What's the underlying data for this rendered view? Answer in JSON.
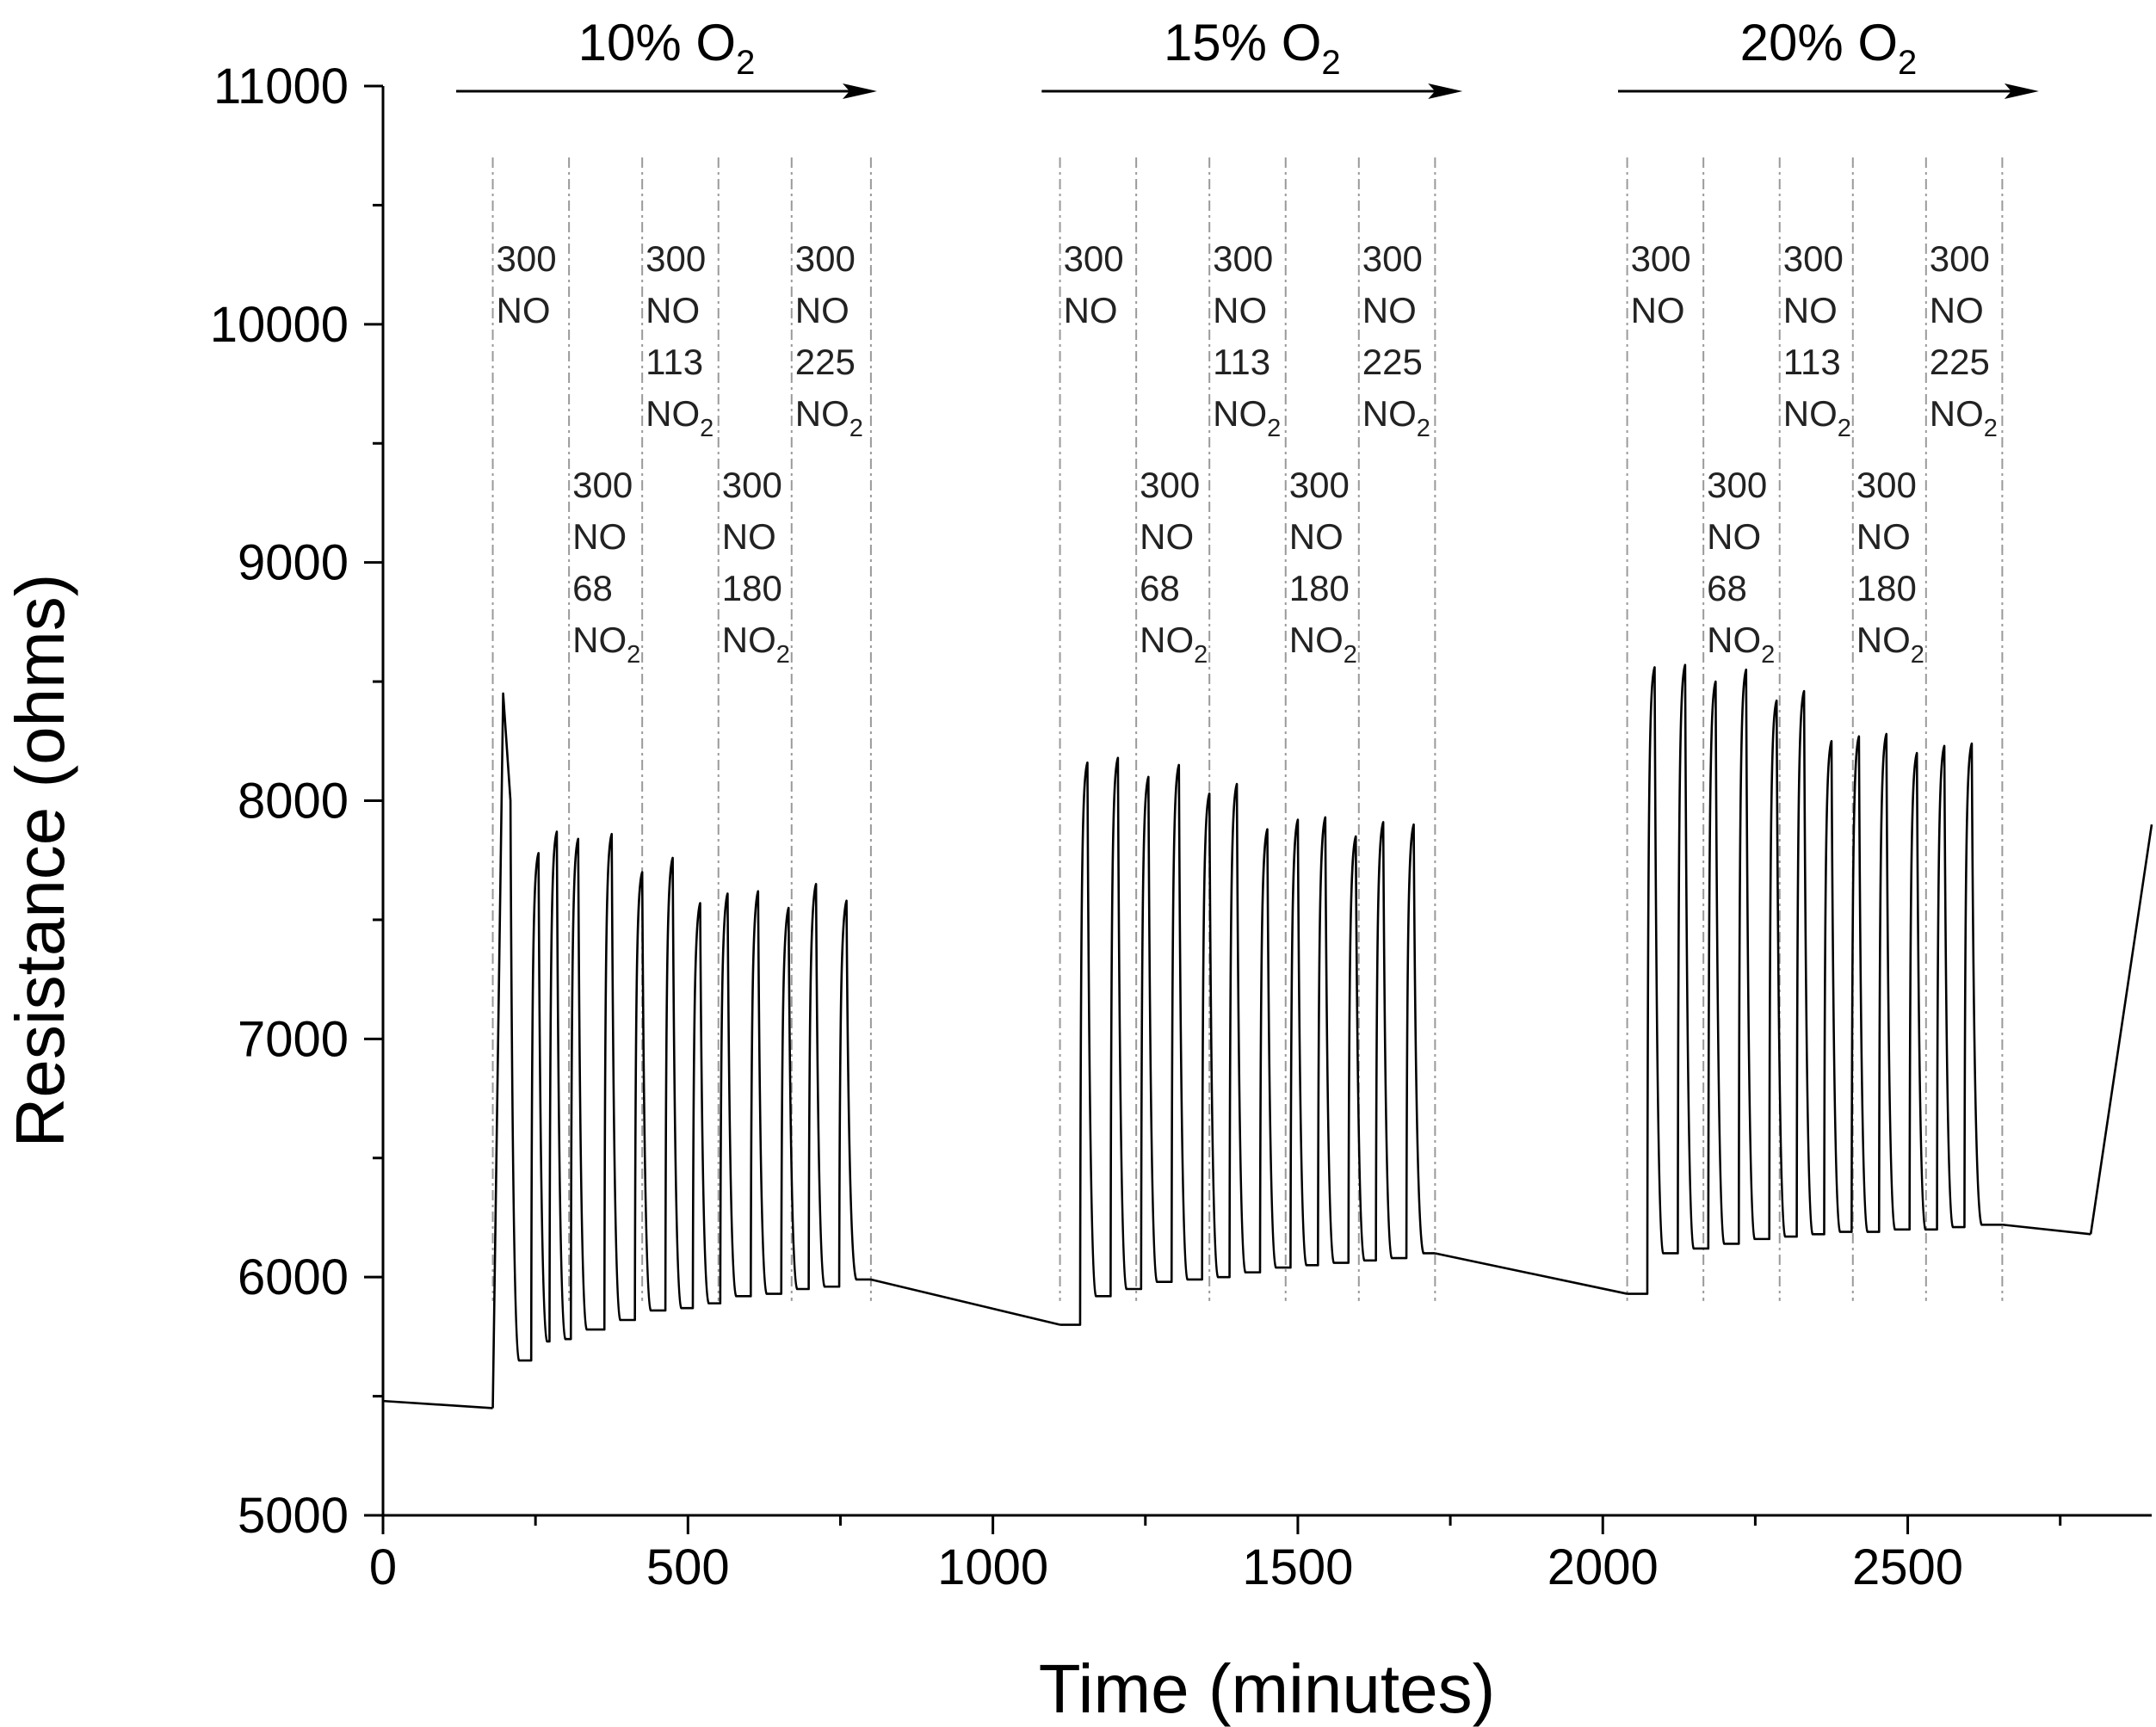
{
  "chart_data": {
    "type": "line",
    "title": "",
    "xlabel": "Time (minutes)",
    "ylabel": "Resistance (ohms)",
    "xlim": [
      0,
      2900
    ],
    "ylim": [
      5000,
      11000
    ],
    "x_ticks": [
      0,
      500,
      1000,
      1500,
      2000,
      2500
    ],
    "x_tick_labels": [
      "0",
      "500",
      "1000",
      "1500",
      "2000",
      "2500"
    ],
    "y_ticks": [
      5000,
      6000,
      7000,
      8000,
      9000,
      10000,
      11000
    ],
    "y_tick_labels": [
      "5000",
      "6000",
      "7000",
      "8000",
      "9000",
      "10000",
      "11000"
    ],
    "grid": false,
    "oxygen_periods": [
      {
        "label": "10% O",
        "subscript": "2",
        "x_start": 120,
        "x_end": 810
      },
      {
        "label": "15% O",
        "subscript": "2",
        "x_start": 1080,
        "x_end": 1770
      },
      {
        "label": "20% O",
        "subscript": "2",
        "x_start": 2025,
        "x_end": 2715
      }
    ],
    "segment_boundaries": [
      [
        180,
        305,
        425,
        550,
        670,
        800
      ],
      [
        1110,
        1235,
        1355,
        1480,
        1600,
        1725
      ],
      [
        2040,
        2165,
        2290,
        2410,
        2530,
        2655
      ]
    ],
    "segment_labels": [
      {
        "lines": [
          "300",
          "NO"
        ],
        "level": "upper"
      },
      {
        "lines": [
          "300",
          "NO",
          "68",
          "NO"
        ],
        "sub_on_last": "2",
        "level": "lower"
      },
      {
        "lines": [
          "300",
          "NO",
          "113",
          "NO"
        ],
        "sub_on_last": "2",
        "level": "upper"
      },
      {
        "lines": [
          "300",
          "NO",
          "180",
          "NO"
        ],
        "sub_on_last": "2",
        "level": "lower"
      },
      {
        "lines": [
          "300",
          "NO",
          "225",
          "NO"
        ],
        "sub_on_last": "2",
        "level": "upper"
      }
    ],
    "baselines": [
      {
        "x": [
          0,
          180
        ],
        "y": [
          5480,
          5450
        ]
      },
      {
        "x": [
          800,
          1110
        ],
        "y": [
          5990,
          5800
        ]
      },
      {
        "x": [
          1725,
          2040
        ],
        "y": [
          6100,
          5930
        ]
      },
      {
        "x": [
          2655,
          2800
        ],
        "y": [
          6220,
          6180
        ]
      },
      {
        "x": [
          2800,
          2900
        ],
        "y": [
          6180,
          7900
        ]
      }
    ],
    "series": [
      {
        "name": "10% O2",
        "start": 180,
        "end": 800,
        "start_level": 5450,
        "end_level": 5990,
        "first_peak": {
          "x": 197,
          "y": 8450,
          "shoulder": 8000
        },
        "pulses": [
          {
            "x": 255,
            "hi": 7780,
            "lo": 5650
          },
          {
            "x": 285,
            "hi": 7870,
            "lo": 5730
          },
          {
            "x": 320,
            "hi": 7840,
            "lo": 5740
          },
          {
            "x": 375,
            "hi": 7860,
            "lo": 5780
          },
          {
            "x": 425,
            "hi": 7700,
            "lo": 5820
          },
          {
            "x": 475,
            "hi": 7760,
            "lo": 5860
          },
          {
            "x": 520,
            "hi": 7570,
            "lo": 5870
          },
          {
            "x": 565,
            "hi": 7610,
            "lo": 5890
          },
          {
            "x": 615,
            "hi": 7620,
            "lo": 5920
          },
          {
            "x": 665,
            "hi": 7550,
            "lo": 5930
          },
          {
            "x": 710,
            "hi": 7650,
            "lo": 5950
          },
          {
            "x": 760,
            "hi": 7580,
            "lo": 5960
          }
        ]
      },
      {
        "name": "15% O2",
        "start": 1110,
        "end": 1725,
        "start_level": 5800,
        "end_level": 6100,
        "pulses": [
          {
            "x": 1155,
            "hi": 8160,
            "lo": 5860
          },
          {
            "x": 1205,
            "hi": 8180,
            "lo": 5920
          },
          {
            "x": 1255,
            "hi": 8100,
            "lo": 5950
          },
          {
            "x": 1305,
            "hi": 8150,
            "lo": 5980
          },
          {
            "x": 1355,
            "hi": 8030,
            "lo": 5990
          },
          {
            "x": 1400,
            "hi": 8070,
            "lo": 6000
          },
          {
            "x": 1450,
            "hi": 7880,
            "lo": 6020
          },
          {
            "x": 1500,
            "hi": 7920,
            "lo": 6040
          },
          {
            "x": 1545,
            "hi": 7930,
            "lo": 6050
          },
          {
            "x": 1595,
            "hi": 7850,
            "lo": 6060
          },
          {
            "x": 1640,
            "hi": 7910,
            "lo": 6070
          },
          {
            "x": 1690,
            "hi": 7900,
            "lo": 6080
          }
        ]
      },
      {
        "name": "20% O2",
        "start": 2040,
        "end": 2655,
        "start_level": 5930,
        "end_level": 6220,
        "pulses": [
          {
            "x": 2085,
            "hi": 8560,
            "lo": 6070
          },
          {
            "x": 2135,
            "hi": 8570,
            "lo": 6100
          },
          {
            "x": 2185,
            "hi": 8500,
            "lo": 6120
          },
          {
            "x": 2235,
            "hi": 8550,
            "lo": 6140
          },
          {
            "x": 2285,
            "hi": 8420,
            "lo": 6160
          },
          {
            "x": 2330,
            "hi": 8460,
            "lo": 6170
          },
          {
            "x": 2375,
            "hi": 8250,
            "lo": 6180
          },
          {
            "x": 2420,
            "hi": 8270,
            "lo": 6190
          },
          {
            "x": 2465,
            "hi": 8280,
            "lo": 6190
          },
          {
            "x": 2515,
            "hi": 8200,
            "lo": 6200
          },
          {
            "x": 2560,
            "hi": 8230,
            "lo": 6200
          },
          {
            "x": 2605,
            "hi": 8240,
            "lo": 6210
          }
        ]
      }
    ]
  }
}
